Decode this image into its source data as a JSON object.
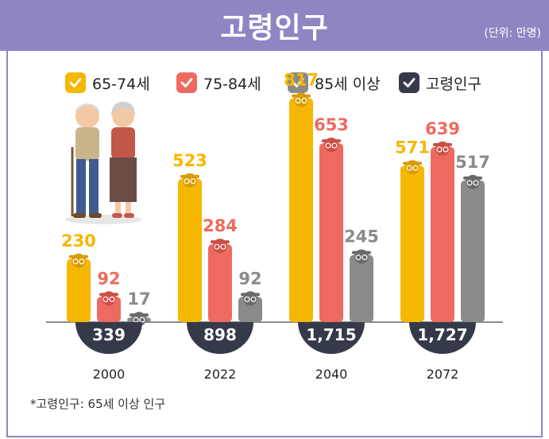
{
  "header": {
    "title": "고령인구",
    "unit": "(단위: 만명)"
  },
  "legend": [
    {
      "label": "65-74세",
      "color": "#f6b700"
    },
    {
      "label": "75-84세",
      "color": "#ee6a60"
    },
    {
      "label": "85세 이상",
      "color": "#8a8a8a"
    },
    {
      "label": "고령인구",
      "color": "#353a4a"
    }
  ],
  "chart_data": {
    "type": "bar",
    "categories": [
      "2000",
      "2022",
      "2040",
      "2072"
    ],
    "series": [
      {
        "name": "65-74세",
        "values": [
          230,
          523,
          817,
          571
        ],
        "color": "#f6b700"
      },
      {
        "name": "75-84세",
        "values": [
          92,
          284,
          653,
          639
        ],
        "color": "#ee6a60"
      },
      {
        "name": "85세 이상",
        "values": [
          17,
          92,
          245,
          517
        ],
        "color": "#8a8a8a"
      }
    ],
    "totals": {
      "name": "고령인구",
      "values": [
        "339",
        "898",
        "1,715",
        "1,727"
      ],
      "color": "#353a4a"
    },
    "ylim": [
      0,
      900
    ],
    "grid": false,
    "legend_position": "top"
  },
  "footnote": "*고령인구: 65세 이상 인구"
}
